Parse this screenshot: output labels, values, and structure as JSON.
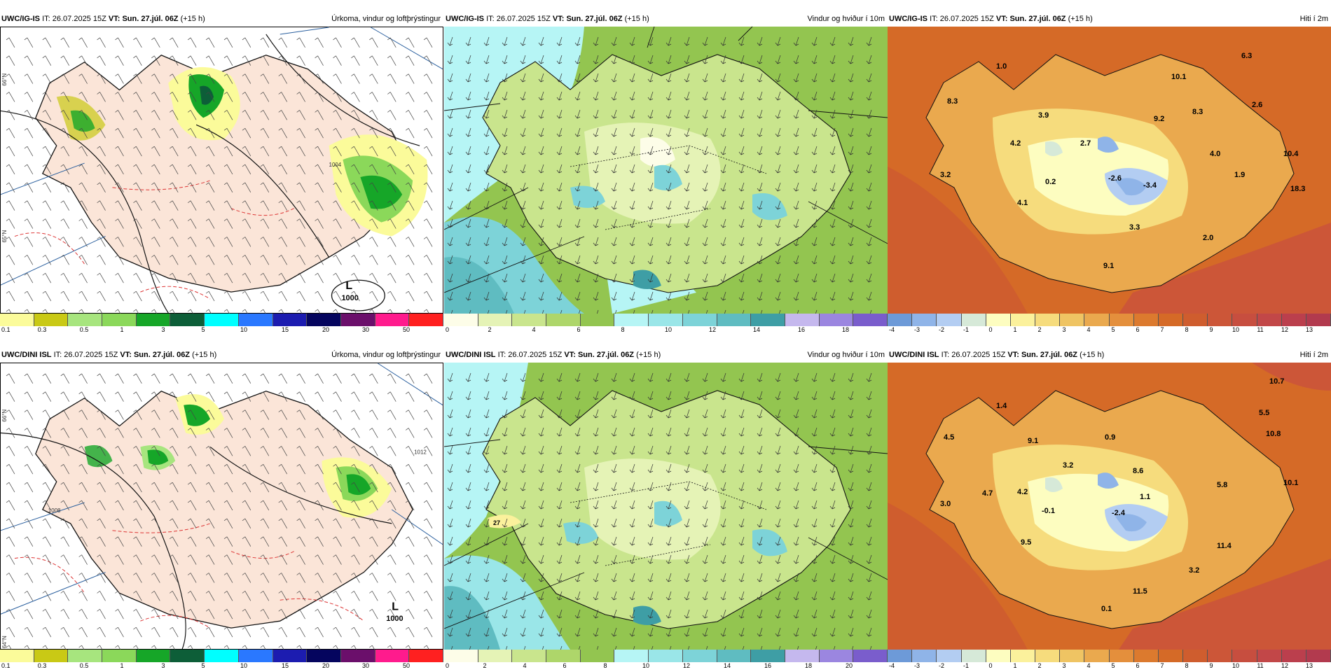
{
  "panels": {
    "p1": {
      "model": "UWC/IG-IS",
      "it_label": "IT:",
      "it": "26.07.2025 15Z",
      "vt_label": "VT:",
      "vt": "Sun. 27.júl. 06Z",
      "lead": "(+15 h)",
      "variable": "Úrkoma, vindur og loftþrýstingur"
    },
    "p2": {
      "model": "UWC/IG-IS",
      "it_label": "IT:",
      "it": "26.07.2025 15Z",
      "vt_label": "VT:",
      "vt": "Sun. 27.júl. 06Z",
      "lead": "(+15 h)",
      "variable": "Vindur og hviður í 10m"
    },
    "p3": {
      "model": "UWC/IG-IS",
      "it_label": "IT:",
      "it": "26.07.2025 15Z",
      "vt_label": "VT:",
      "vt": "Sun. 27.júl. 06Z",
      "lead": "(+15 h)",
      "variable": "Hiti í 2m"
    },
    "p4": {
      "model": "UWC/DINI ISL",
      "it_label": "IT:",
      "it": "26.07.2025 15Z",
      "vt_label": "VT:",
      "vt": "Sun. 27.júl. 06Z",
      "lead": "(+15 h)",
      "variable": "Úrkoma, vindur og loftþrýstingur"
    },
    "p5": {
      "model": "UWC/DINI ISL",
      "it_label": "IT:",
      "it": "26.07.2025 15Z",
      "vt_label": "VT:",
      "vt": "Sun. 27.júl. 06Z",
      "lead": "(+15 h)",
      "variable": "Vindur og hviður í 10m"
    },
    "p6": {
      "model": "UWC/DINI ISL",
      "it_label": "IT:",
      "it": "26.07.2025 15Z",
      "vt_label": "VT:",
      "vt": "Sun. 27.júl. 06Z",
      "lead": "(+15 h)",
      "variable": "Hiti í 2m"
    }
  },
  "low_pressure": {
    "top": {
      "symbol": "L",
      "value": "1000"
    },
    "bottom": {
      "symbol": "L",
      "value": "1000"
    }
  },
  "isobar_labels": [
    "1004",
    "1008",
    "1000",
    "1012"
  ],
  "lat_labels": [
    "66°N",
    "65°N",
    "64°N"
  ],
  "precip_scale": {
    "colors": [
      "#fbfb9a",
      "#c9c915",
      "#a7e57e",
      "#8bd85a",
      "#16a628",
      "#0d5e38",
      "#00ffff",
      "#2a78ff",
      "#1c1cb0",
      "#05055e",
      "#6b0f6b",
      "#ff1b8d",
      "#ff2020"
    ],
    "labels": [
      "0.1",
      "0.3",
      "0.5",
      "1",
      "3",
      "5",
      "10",
      "15",
      "20",
      "30",
      "50"
    ]
  },
  "wind_scale": {
    "colors": [
      "#fdfde8",
      "#e5f3b6",
      "#c9e58d",
      "#aed66a",
      "#93c550",
      "#b6f5f5",
      "#9ae6e8",
      "#7dd3d8",
      "#5fbcc1",
      "#3e9ea5",
      "#c5b8ee",
      "#9b86e0",
      "#7a5dcc"
    ],
    "labels_top": [
      "0",
      "2",
      "4",
      "6",
      "8",
      "10",
      "12",
      "14",
      "16",
      "18"
    ],
    "labels_bottom": [
      "0",
      "2",
      "4",
      "6",
      "8",
      "10",
      "12",
      "14",
      "16",
      "18",
      "20"
    ]
  },
  "temp_scale": {
    "colors": [
      "#6d9ad8",
      "#8fb4e8",
      "#b3cdf2",
      "#d6e9d8",
      "#fdfdc0",
      "#fbf19c",
      "#f6dc7d",
      "#efc463",
      "#eaa94e",
      "#e48f3c",
      "#dc7a2e",
      "#d56a27",
      "#cf5d2e",
      "#cc5638",
      "#c74e3f",
      "#c24748",
      "#bb3f4d",
      "#b23a4e"
    ],
    "labels": [
      "-4",
      "-3",
      "-2",
      "-1",
      "0",
      "1",
      "2",
      "3",
      "4",
      "5",
      "6",
      "7",
      "8",
      "9",
      "10",
      "11",
      "12",
      "13"
    ]
  },
  "temp_values_top": [
    "1.0",
    "6.3",
    "10.1",
    "8.3",
    "9.2",
    "3.9",
    "2.6",
    "4.2",
    "2.7",
    "4.0",
    "10.4",
    "8.3",
    "3.2",
    "0.2",
    "-2.6",
    "-3.4",
    "1.9",
    "18.3",
    "4.1",
    "3.3",
    "2.0",
    "9.1"
  ],
  "temp_values_bottom": [
    "10.7",
    "1.4",
    "5.5",
    "4.5",
    "9.1",
    "0.9",
    "10.8",
    "3.2",
    "8.6",
    "10.1",
    "5.8",
    "4.7",
    "4.2",
    "3.0",
    "-0.1",
    "-2.4",
    "1.1",
    "9.5",
    "11.4",
    "3.2",
    "11.5",
    "0.1"
  ],
  "wind_gust_label_bottom": "27"
}
